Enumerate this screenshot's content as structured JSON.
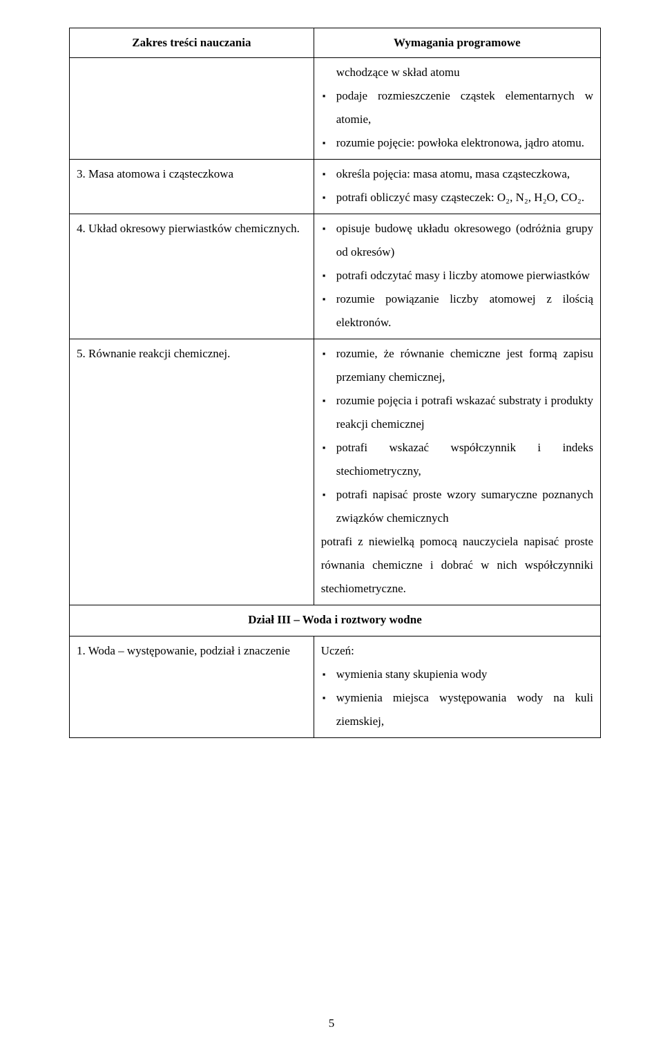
{
  "headers": {
    "left": "Zakres treści nauczania",
    "right": "Wymagania programowe"
  },
  "rows": [
    {
      "left_lines": [
        ""
      ],
      "right_items": [
        "wchodzące w skład atomu",
        "podaje rozmieszczenie cząstek elementarnych w atomie,",
        "rozumie pojęcie: powłoka elektronowa, jądro atomu."
      ],
      "right_first_is_continuation": true
    },
    {
      "left_lines": [
        "3. Masa atomowa i cząsteczkowa"
      ],
      "right_items": [
        "określa pojęcia: masa atomu, masa cząsteczkowa,",
        "potrafi obliczyć masy cząsteczek: O₂, N₂, H₂O, CO₂."
      ],
      "right_first_is_continuation": false
    },
    {
      "left_lines": [
        "4. Układ okresowy pierwiastków chemicznych."
      ],
      "right_items": [
        "opisuje budowę układu okresowego (odróżnia grupy od okresów)",
        "potrafi odczytać masy i liczby atomowe pierwiastków",
        "rozumie powiązanie liczby atomowej z ilością elektronów."
      ],
      "right_first_is_continuation": false
    },
    {
      "left_lines": [
        "5. Równanie reakcji chemicznej."
      ],
      "right_items": [
        "rozumie, że równanie chemiczne jest formą zapisu przemiany chemicznej,",
        "rozumie pojęcia i potrafi wskazać substraty i produkty reakcji chemicznej",
        "potrafi wskazać współczynnik i indeks stechiometryczny,",
        "potrafi napisać proste wzory sumaryczne poznanych związków chemicznych"
      ],
      "right_trailing_paras": [
        "potrafi z niewielką pomocą nauczyciela napisać proste równania chemiczne i dobrać w nich współczynniki stechiometryczne."
      ],
      "right_first_is_continuation": false
    }
  ],
  "section_title": "Dział III – Woda i roztwory wodne",
  "section_rows": [
    {
      "left_lines": [
        "1. Woda – występowanie, podział i znaczenie"
      ],
      "right_lead": "Uczeń:",
      "right_items": [
        "wymienia stany skupienia wody",
        "wymienia miejsca występowania wody na kuli ziemskiej,"
      ]
    }
  ],
  "page_number": "5"
}
